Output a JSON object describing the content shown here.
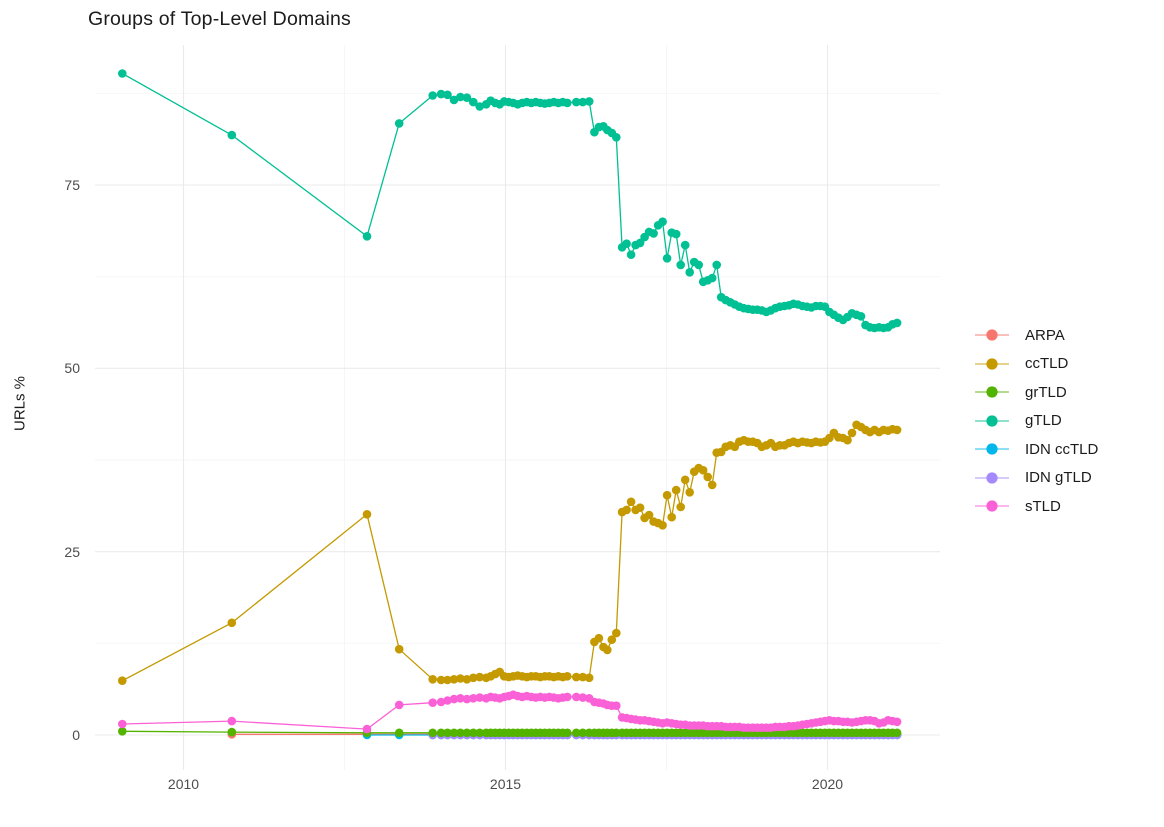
{
  "title": "Groups of Top-Level Domains",
  "chart_data": {
    "type": "line",
    "title": "Groups of Top-Level Domains",
    "xlabel": "",
    "ylabel": "URLs %",
    "x_ticks": [
      "2010",
      "2015",
      "2020"
    ],
    "x_tick_years": [
      2010,
      2015,
      2020
    ],
    "y_ticks": [
      "0",
      "25",
      "50",
      "75"
    ],
    "y_tick_values": [
      0,
      25,
      50,
      75
    ],
    "x_minor": [
      2012.5,
      2017.5
    ],
    "y_minor": [
      12.5,
      37.5,
      62.5,
      87.5
    ],
    "xlim": [
      2008.6,
      2021.7
    ],
    "ylim": [
      -4.7,
      94.2
    ],
    "grid": true,
    "legend_position": "right",
    "grid_major_color": "#ebebeb",
    "grid_minor_color": "#f5f5f5",
    "x": [
      2009.05,
      2010.75,
      2012.85,
      2013.35,
      2013.87,
      2014.0,
      2014.1,
      2014.2,
      2014.3,
      2014.4,
      2014.5,
      2014.6,
      2014.7,
      2014.77,
      2014.84,
      2014.91,
      2014.98,
      2015.05,
      2015.12,
      2015.19,
      2015.26,
      2015.33,
      2015.4,
      2015.47,
      2015.54,
      2015.61,
      2015.68,
      2015.75,
      2015.82,
      2015.89,
      2015.96,
      2016.1,
      2016.2,
      2016.3,
      2016.38,
      2016.45,
      2016.52,
      2016.58,
      2016.65,
      2016.72,
      2016.81,
      2016.88,
      2016.95,
      2017.02,
      2017.09,
      2017.16,
      2017.23,
      2017.3,
      2017.37,
      2017.44,
      2017.51,
      2017.58,
      2017.65,
      2017.72,
      2017.79,
      2017.86,
      2017.93,
      2018.0,
      2018.07,
      2018.14,
      2018.21,
      2018.28,
      2018.35,
      2018.42,
      2018.49,
      2018.56,
      2018.63,
      2018.7,
      2018.77,
      2018.84,
      2018.91,
      2018.98,
      2019.05,
      2019.12,
      2019.19,
      2019.26,
      2019.33,
      2019.4,
      2019.47,
      2019.54,
      2019.61,
      2019.68,
      2019.75,
      2019.82,
      2019.89,
      2019.96,
      2020.03,
      2020.1,
      2020.17,
      2020.24,
      2020.31,
      2020.38,
      2020.45,
      2020.52,
      2020.59,
      2020.66,
      2020.73,
      2020.8,
      2020.87,
      2020.94,
      2021.01,
      2021.08
    ],
    "series": [
      {
        "name": "ARPA",
        "color": "#F8766D",
        "y": [
          null,
          0.1,
          0.1,
          0.1,
          0.1,
          0.1,
          0.1,
          0.1,
          0.1,
          0.1,
          0.1,
          0.1,
          0.1,
          0.1,
          0.1,
          0.1,
          0.1,
          0.1,
          0.1,
          0.1,
          0.1,
          0.1,
          0.1,
          0.1,
          0.1,
          0.1,
          0.1,
          0.1,
          0.1,
          0.1,
          0.1,
          0.1,
          0.1,
          0.1,
          0.1,
          0.1,
          0.1,
          0.1,
          0.1,
          0.1,
          0.1,
          0.1,
          0.1,
          0.1,
          0.1,
          0.1,
          0.1,
          0.1,
          0.1,
          0.1,
          0.1,
          0.1,
          0.1,
          0.1,
          0.1,
          0.1,
          0.1,
          0.1,
          0.1,
          0.1,
          0.1,
          0.1,
          0.1,
          0.1,
          0.1,
          0.1,
          0.1,
          0.1,
          0.1,
          0.1,
          0.1,
          0.1,
          0.1,
          0.1,
          0.1,
          0.1,
          0.1,
          0.1,
          0.1,
          0.1,
          0.1,
          0.1,
          0.1,
          0.1,
          0.1,
          0.1,
          0.1,
          0.1,
          0.1,
          0.1,
          0.1,
          0.1,
          0.1,
          0.1,
          0.1,
          0.1,
          0.1,
          0.1,
          0.1,
          0.1,
          0.1,
          0.1
        ]
      },
      {
        "name": "ccTLD",
        "color": "#C49A00",
        "y": [
          7.4,
          15.3,
          30.1,
          11.7,
          7.6,
          7.5,
          7.5,
          7.6,
          7.7,
          7.6,
          7.8,
          7.9,
          7.8,
          8,
          8.3,
          8.6,
          8,
          7.9,
          8,
          8.1,
          8,
          7.9,
          8,
          8,
          7.9,
          8,
          8,
          7.9,
          8,
          7.9,
          8,
          7.9,
          7.9,
          7.8,
          12.7,
          13.2,
          12,
          11.6,
          13,
          13.9,
          30.4,
          30.7,
          31.8,
          30.7,
          31,
          29.6,
          30,
          29.1,
          28.9,
          28.6,
          32.7,
          29.7,
          33.4,
          31.1,
          34.8,
          33.1,
          35.9,
          36.4,
          36.1,
          35.2,
          34.1,
          38.5,
          38.6,
          39.3,
          39.5,
          39.3,
          40,
          40.2,
          40,
          40,
          39.8,
          39.3,
          39.5,
          39.8,
          39.3,
          39.5,
          39.5,
          39.8,
          40,
          39.8,
          40,
          39.9,
          39.8,
          40,
          39.9,
          40,
          40.5,
          41.2,
          40.6,
          40.5,
          40.2,
          41.2,
          42.3,
          42,
          41.6,
          41.3,
          41.6,
          41.3,
          41.6,
          41.5,
          41.7,
          41.6
        ]
      },
      {
        "name": "grTLD",
        "color": "#53B400",
        "y": [
          0.5,
          0.4,
          0.3,
          0.3,
          0.3,
          0.3,
          0.3,
          0.3,
          0.3,
          0.3,
          0.3,
          0.3,
          0.3,
          0.3,
          0.3,
          0.3,
          0.3,
          0.3,
          0.3,
          0.3,
          0.3,
          0.3,
          0.3,
          0.3,
          0.3,
          0.3,
          0.3,
          0.3,
          0.3,
          0.3,
          0.3,
          0.3,
          0.3,
          0.3,
          0.3,
          0.3,
          0.3,
          0.3,
          0.3,
          0.3,
          0.3,
          0.3,
          0.3,
          0.3,
          0.3,
          0.3,
          0.3,
          0.3,
          0.3,
          0.3,
          0.3,
          0.3,
          0.3,
          0.3,
          0.3,
          0.3,
          0.3,
          0.3,
          0.3,
          0.3,
          0.3,
          0.3,
          0.3,
          0.3,
          0.3,
          0.3,
          0.3,
          0.3,
          0.3,
          0.3,
          0.3,
          0.3,
          0.3,
          0.3,
          0.3,
          0.3,
          0.3,
          0.3,
          0.3,
          0.3,
          0.3,
          0.3,
          0.3,
          0.3,
          0.3,
          0.3,
          0.3,
          0.3,
          0.3,
          0.3,
          0.3,
          0.3,
          0.3,
          0.3,
          0.3,
          0.3,
          0.3,
          0.3,
          0.3,
          0.3,
          0.3,
          0.3
        ]
      },
      {
        "name": "gTLD",
        "color": "#00C094",
        "y": [
          90.2,
          81.8,
          68,
          83.4,
          87.2,
          87.4,
          87.3,
          86.6,
          87,
          86.9,
          86.3,
          85.7,
          86,
          86.5,
          86.2,
          86,
          86.4,
          86.3,
          86.2,
          86,
          86.2,
          86.3,
          86.2,
          86.3,
          86.2,
          86.1,
          86.2,
          86.3,
          86.2,
          86.3,
          86.2,
          86.3,
          86.3,
          86.4,
          82.2,
          82.9,
          83,
          82.5,
          82.1,
          81.5,
          66.5,
          67,
          65.5,
          66.8,
          67.1,
          67.9,
          68.6,
          68.4,
          69.5,
          70,
          65,
          68.5,
          68.3,
          64.1,
          66.8,
          63.1,
          64.5,
          64.1,
          61.8,
          62,
          62.3,
          64.1,
          59.7,
          59.3,
          59,
          58.7,
          58.4,
          58.2,
          58.1,
          58,
          58,
          57.9,
          57.7,
          57.9,
          58.2,
          58.4,
          58.5,
          58.6,
          58.8,
          58.7,
          58.5,
          58.4,
          58.3,
          58.5,
          58.5,
          58.4,
          57.7,
          57.3,
          56.9,
          56.6,
          57,
          57.5,
          57.3,
          57.1,
          55.9,
          55.6,
          55.5,
          55.6,
          55.5,
          55.6,
          56,
          56.2
        ]
      },
      {
        "name": "IDN ccTLD",
        "color": "#00B6EB",
        "y": [
          null,
          null,
          0,
          0,
          0,
          0,
          0,
          0,
          0,
          0,
          0,
          0,
          0,
          0,
          0,
          0,
          0,
          0,
          0,
          0,
          0,
          0,
          0,
          0,
          0,
          0,
          0,
          0,
          0,
          0,
          0,
          0,
          0,
          0,
          0,
          0,
          0,
          0,
          0,
          0,
          0,
          0,
          0,
          0,
          0,
          0,
          0,
          0,
          0,
          0,
          0,
          0,
          0,
          0,
          0,
          0,
          0,
          0,
          0,
          0,
          0,
          0,
          0,
          0,
          0,
          0,
          0,
          0,
          0,
          0,
          0,
          0,
          0,
          0,
          0,
          0,
          0,
          0,
          0,
          0,
          0,
          0,
          0,
          0,
          0,
          0,
          0,
          0,
          0,
          0,
          0,
          0,
          0,
          0,
          0,
          0,
          0,
          0,
          0,
          0,
          0,
          0
        ]
      },
      {
        "name": "IDN gTLD",
        "color": "#A58AFF",
        "y": [
          null,
          null,
          null,
          null,
          0,
          0,
          0,
          0,
          0,
          0,
          0,
          0,
          0,
          0,
          0,
          0,
          0,
          0,
          0,
          0,
          0,
          0,
          0,
          0,
          0,
          0,
          0,
          0,
          0,
          0,
          0,
          0,
          0,
          0,
          0,
          0,
          0,
          0,
          0,
          0,
          0,
          0,
          0,
          0,
          0,
          0,
          0,
          0,
          0,
          0,
          0,
          0,
          0,
          0,
          0,
          0,
          0,
          0,
          0,
          0,
          0,
          0,
          0,
          0,
          0,
          0,
          0,
          0,
          0,
          0,
          0,
          0,
          0,
          0,
          0,
          0,
          0,
          0,
          0,
          0,
          0,
          0,
          0,
          0,
          0,
          0,
          0,
          0,
          0,
          0,
          0,
          0,
          0,
          0,
          0,
          0,
          0,
          0,
          0,
          0,
          0,
          0
        ]
      },
      {
        "name": "sTLD",
        "color": "#FB61D7",
        "y": [
          1.5,
          1.9,
          0.8,
          4.1,
          4.4,
          4.5,
          4.7,
          4.9,
          5,
          4.9,
          5,
          5.1,
          5,
          5.2,
          5.1,
          5,
          5.2,
          5.3,
          5.5,
          5.3,
          5.2,
          5.3,
          5.2,
          5.1,
          5.2,
          5.1,
          5.2,
          5.1,
          5,
          5.1,
          5.2,
          5.2,
          5.1,
          5,
          4.5,
          4.4,
          4.3,
          4.1,
          4,
          4,
          2.4,
          2.3,
          2.2,
          2.1,
          2,
          2,
          1.9,
          1.8,
          1.7,
          1.6,
          1.7,
          1.6,
          1.5,
          1.4,
          1.4,
          1.3,
          1.3,
          1.3,
          1.3,
          1.2,
          1.2,
          1.2,
          1.2,
          1.1,
          1.1,
          1.1,
          1.1,
          1,
          1,
          1,
          1,
          1,
          1,
          1,
          1.1,
          1.1,
          1.1,
          1.2,
          1.2,
          1.3,
          1.4,
          1.5,
          1.6,
          1.7,
          1.8,
          1.9,
          2,
          1.9,
          1.9,
          1.8,
          1.8,
          1.7,
          1.8,
          1.9,
          2,
          2,
          1.9,
          1.6,
          1.7,
          2,
          1.9,
          1.8
        ]
      }
    ]
  }
}
